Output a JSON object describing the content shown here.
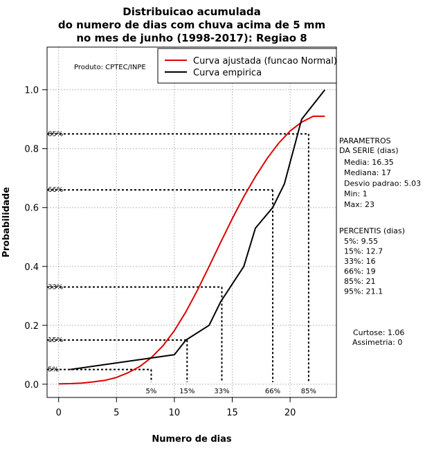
{
  "chart_data": {
    "type": "line",
    "title": [
      "Distribuicao acumulada",
      "do numero de dias com chuva acima de 5 mm",
      "no mes de junho (1998-2017): Regiao 8"
    ],
    "xlabel": "Numero de dias",
    "ylabel": "Probabilidade",
    "xlim": [
      -1,
      24
    ],
    "ylim": [
      -0.045,
      1.145
    ],
    "x_ticks": [
      0,
      5,
      10,
      15,
      20
    ],
    "y_ticks": [
      0.0,
      0.2,
      0.4,
      0.6,
      0.8,
      1.0
    ],
    "x_tick_labels": [
      "0",
      "5",
      "10",
      "15",
      "20"
    ],
    "y_tick_labels": [
      "0.0",
      "0.2",
      "0.4",
      "0.6",
      "0.8",
      "1.0"
    ],
    "grid": true,
    "legend_position": "top-right",
    "series": [
      {
        "name": "Curva ajustada (funcao Normal)",
        "color": "#dd0000",
        "x": [
          0,
          1,
          2,
          3,
          4,
          5,
          6,
          7,
          8,
          9,
          10,
          11,
          12,
          13,
          14,
          15,
          16,
          17,
          18,
          19,
          20,
          21,
          22,
          23
        ],
        "values": [
          0.001,
          0.002,
          0.004,
          0.008,
          0.013,
          0.023,
          0.039,
          0.06,
          0.09,
          0.13,
          0.182,
          0.246,
          0.32,
          0.4,
          0.482,
          0.562,
          0.637,
          0.705,
          0.766,
          0.818,
          0.86,
          0.89,
          0.91,
          0.91
        ]
      },
      {
        "name": "Curva empirica",
        "color": "#000000",
        "x": [
          1,
          10,
          11,
          13,
          14,
          16,
          17,
          18.5,
          19.5,
          21,
          23
        ],
        "values": [
          0.05,
          0.1,
          0.15,
          0.2,
          0.28,
          0.4,
          0.53,
          0.6,
          0.68,
          0.9,
          1.0
        ]
      }
    ],
    "percentile_markers": [
      {
        "label": "5%",
        "y": 0.05,
        "x": 8.0
      },
      {
        "label": "15%",
        "y": 0.15,
        "x": 11.1
      },
      {
        "label": "33%",
        "y": 0.33,
        "x": 14.1
      },
      {
        "label": "66%",
        "y": 0.66,
        "x": 18.5
      },
      {
        "label": "85%",
        "y": 0.85,
        "x": 21.6
      }
    ],
    "annotation_product": "Produto: CPTEC/INPE",
    "parameters": {
      "heading": [
        "PARAMETROS",
        "DA SERIE (dias)"
      ],
      "lines": [
        "Media: 16.35",
        "Mediana: 17",
        "Desvio padrao: 5.03",
        "Min: 1",
        "Max: 23"
      ]
    },
    "percentis": {
      "heading": "PERCENTIS (dias)",
      "lines": [
        "5%: 9.55",
        "15%: 12.7",
        "33%: 16",
        "66%: 19",
        "85%: 21",
        "95%: 21.1"
      ]
    },
    "shape": {
      "lines": [
        "Curtose: 1.06",
        "Assimetria: 0"
      ]
    }
  }
}
